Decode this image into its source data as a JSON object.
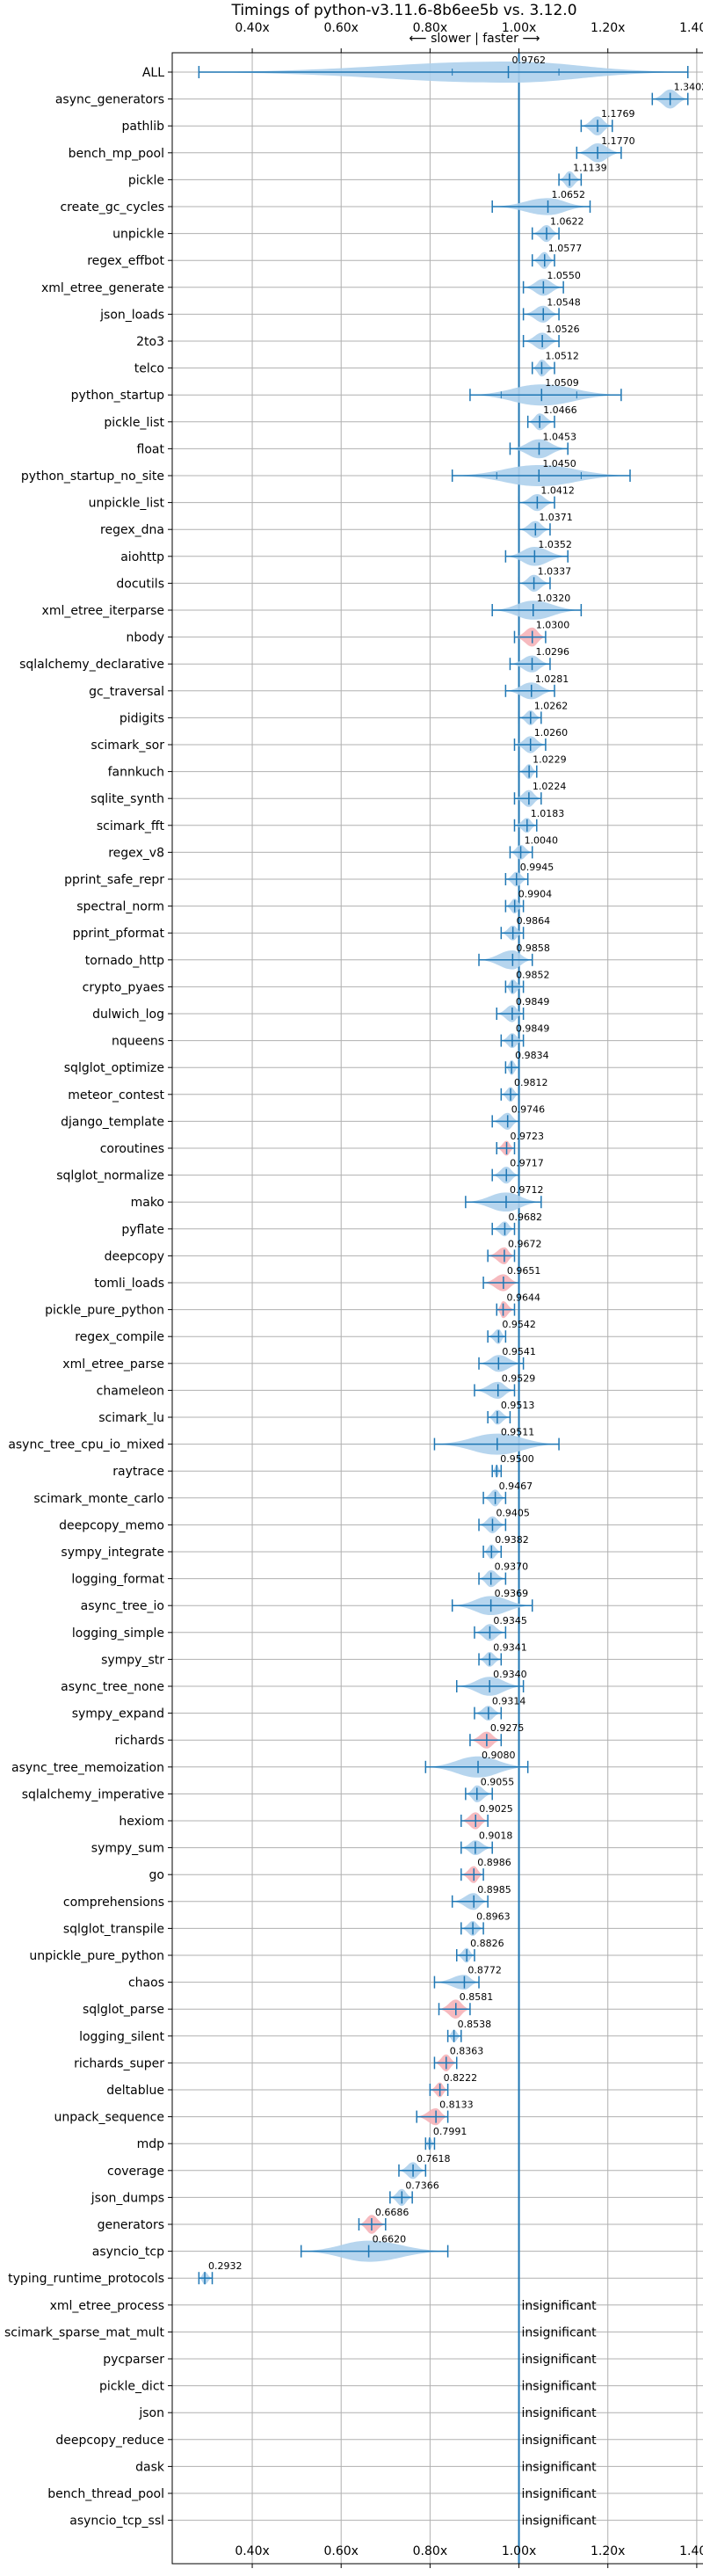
{
  "chart_data": {
    "type": "violin",
    "title": "Timings of python-v3.11.6-8b6ee5b vs. 3.12.0",
    "subtitle": "⟵ slower | faster ⟶",
    "x_ticks": [
      "0.40x",
      "0.60x",
      "0.80x",
      "1.00x",
      "1.20x",
      "1.40x"
    ],
    "xlim": [
      0.22,
      1.42
    ],
    "reference_x": 1.0,
    "insignificant_label": "insignificant",
    "colors": {
      "violin": "#aed0ec",
      "highlight": "#f5b3b8",
      "whisker": "#1f77b4",
      "grid": "#b0b0b0"
    },
    "benchmarks": [
      {
        "name": "ALL",
        "mean": 0.9762,
        "label": "0.9762",
        "lo": 0.28,
        "hi": 1.38,
        "w": 1.0,
        "p5": 0.85,
        "p95": 1.09,
        "hl": false,
        "sig": true
      },
      {
        "name": "async_generators",
        "mean": 1.3402,
        "label": "1.3402",
        "lo": 1.3,
        "hi": 1.38,
        "w": 0.9,
        "hl": false,
        "sig": true
      },
      {
        "name": "pathlib",
        "mean": 1.1769,
        "label": "1.1769",
        "lo": 1.14,
        "hi": 1.21,
        "w": 0.9,
        "hl": false,
        "sig": true
      },
      {
        "name": "bench_mp_pool",
        "mean": 1.177,
        "label": "1.1770",
        "lo": 1.13,
        "hi": 1.23,
        "w": 0.9,
        "hl": false,
        "sig": true
      },
      {
        "name": "pickle",
        "mean": 1.1139,
        "label": "1.1139",
        "lo": 1.09,
        "hi": 1.14,
        "w": 0.8,
        "hl": false,
        "sig": true
      },
      {
        "name": "create_gc_cycles",
        "mean": 1.0652,
        "label": "1.0652",
        "lo": 0.94,
        "hi": 1.16,
        "w": 0.8,
        "hl": false,
        "sig": true
      },
      {
        "name": "unpickle",
        "mean": 1.0622,
        "label": "1.0622",
        "lo": 1.03,
        "hi": 1.09,
        "w": 0.8,
        "hl": false,
        "sig": true
      },
      {
        "name": "regex_effbot",
        "mean": 1.0577,
        "label": "1.0577",
        "lo": 1.03,
        "hi": 1.08,
        "w": 0.8,
        "hl": false,
        "sig": true
      },
      {
        "name": "xml_etree_generate",
        "mean": 1.055,
        "label": "1.0550",
        "lo": 1.01,
        "hi": 1.1,
        "w": 0.8,
        "hl": false,
        "sig": true
      },
      {
        "name": "json_loads",
        "mean": 1.0548,
        "label": "1.0548",
        "lo": 1.01,
        "hi": 1.09,
        "w": 0.8,
        "hl": false,
        "sig": true
      },
      {
        "name": "2to3",
        "mean": 1.0526,
        "label": "1.0526",
        "lo": 1.01,
        "hi": 1.09,
        "w": 0.8,
        "hl": false,
        "sig": true
      },
      {
        "name": "telco",
        "mean": 1.0512,
        "label": "1.0512",
        "lo": 1.03,
        "hi": 1.08,
        "w": 0.8,
        "hl": false,
        "sig": true
      },
      {
        "name": "python_startup",
        "mean": 1.0509,
        "label": "1.0509",
        "lo": 0.89,
        "hi": 1.23,
        "w": 1.0,
        "p5": 0.96,
        "p95": 1.13,
        "hl": false,
        "sig": true
      },
      {
        "name": "pickle_list",
        "mean": 1.0466,
        "label": "1.0466",
        "lo": 1.02,
        "hi": 1.08,
        "w": 0.8,
        "hl": false,
        "sig": true
      },
      {
        "name": "float",
        "mean": 1.0453,
        "label": "1.0453",
        "lo": 0.98,
        "hi": 1.11,
        "w": 0.9,
        "hl": false,
        "sig": true
      },
      {
        "name": "python_startup_no_site",
        "mean": 1.045,
        "label": "1.0450",
        "lo": 0.85,
        "hi": 1.25,
        "w": 1.0,
        "p5": 0.95,
        "p95": 1.14,
        "hl": false,
        "sig": true
      },
      {
        "name": "unpickle_list",
        "mean": 1.0412,
        "label": "1.0412",
        "lo": 1.0,
        "hi": 1.08,
        "w": 0.8,
        "hl": false,
        "sig": true
      },
      {
        "name": "regex_dna",
        "mean": 1.0371,
        "label": "1.0371",
        "lo": 1.0,
        "hi": 1.07,
        "w": 0.8,
        "hl": false,
        "sig": true
      },
      {
        "name": "aiohttp",
        "mean": 1.0352,
        "label": "1.0352",
        "lo": 0.97,
        "hi": 1.11,
        "w": 0.9,
        "hl": false,
        "sig": true
      },
      {
        "name": "docutils",
        "mean": 1.0337,
        "label": "1.0337",
        "lo": 1.0,
        "hi": 1.07,
        "w": 0.8,
        "hl": false,
        "sig": true
      },
      {
        "name": "xml_etree_iterparse",
        "mean": 1.032,
        "label": "1.0320",
        "lo": 0.94,
        "hi": 1.14,
        "w": 0.9,
        "hl": false,
        "sig": true
      },
      {
        "name": "nbody",
        "mean": 1.03,
        "label": "1.0300",
        "lo": 0.99,
        "hi": 1.06,
        "w": 0.9,
        "hl": true,
        "sig": true
      },
      {
        "name": "sqlalchemy_declarative",
        "mean": 1.0296,
        "label": "1.0296",
        "lo": 0.98,
        "hi": 1.07,
        "w": 0.8,
        "hl": false,
        "sig": true
      },
      {
        "name": "gc_traversal",
        "mean": 1.0281,
        "label": "1.0281",
        "lo": 0.97,
        "hi": 1.08,
        "w": 0.8,
        "hl": false,
        "sig": true
      },
      {
        "name": "pidigits",
        "mean": 1.0262,
        "label": "1.0262",
        "lo": 1.0,
        "hi": 1.05,
        "w": 0.7,
        "hl": false,
        "sig": true
      },
      {
        "name": "scimark_sor",
        "mean": 1.026,
        "label": "1.0260",
        "lo": 0.99,
        "hi": 1.06,
        "w": 0.8,
        "hl": false,
        "sig": true
      },
      {
        "name": "fannkuch",
        "mean": 1.0229,
        "label": "1.0229",
        "lo": 1.0,
        "hi": 1.04,
        "w": 0.7,
        "hl": false,
        "sig": true
      },
      {
        "name": "sqlite_synth",
        "mean": 1.0224,
        "label": "1.0224",
        "lo": 0.99,
        "hi": 1.05,
        "w": 0.8,
        "hl": false,
        "sig": true
      },
      {
        "name": "scimark_fft",
        "mean": 1.0183,
        "label": "1.0183",
        "lo": 0.99,
        "hi": 1.04,
        "w": 0.7,
        "hl": false,
        "sig": true
      },
      {
        "name": "regex_v8",
        "mean": 1.004,
        "label": "1.0040",
        "lo": 0.98,
        "hi": 1.03,
        "w": 0.7,
        "hl": false,
        "sig": true
      },
      {
        "name": "pprint_safe_repr",
        "mean": 0.9945,
        "label": "0.9945",
        "lo": 0.97,
        "hi": 1.02,
        "w": 0.7,
        "hl": false,
        "sig": true
      },
      {
        "name": "spectral_norm",
        "mean": 0.9904,
        "label": "0.9904",
        "lo": 0.97,
        "hi": 1.01,
        "w": 0.7,
        "hl": false,
        "sig": true
      },
      {
        "name": "pprint_pformat",
        "mean": 0.9864,
        "label": "0.9864",
        "lo": 0.96,
        "hi": 1.01,
        "w": 0.7,
        "hl": false,
        "sig": true
      },
      {
        "name": "tornado_http",
        "mean": 0.9858,
        "label": "0.9858",
        "lo": 0.91,
        "hi": 1.03,
        "w": 0.9,
        "hl": false,
        "sig": true
      },
      {
        "name": "crypto_pyaes",
        "mean": 0.9852,
        "label": "0.9852",
        "lo": 0.97,
        "hi": 1.01,
        "w": 0.7,
        "hl": false,
        "sig": true
      },
      {
        "name": "dulwich_log",
        "mean": 0.9849,
        "label": "0.9849",
        "lo": 0.95,
        "hi": 1.01,
        "w": 0.8,
        "hl": false,
        "sig": true
      },
      {
        "name": "nqueens",
        "mean": 0.9849,
        "label": "0.9849",
        "lo": 0.96,
        "hi": 1.01,
        "w": 0.7,
        "hl": false,
        "sig": true
      },
      {
        "name": "sqlglot_optimize",
        "mean": 0.9834,
        "label": "0.9834",
        "lo": 0.97,
        "hi": 1.0,
        "w": 0.7,
        "hl": false,
        "sig": true
      },
      {
        "name": "meteor_contest",
        "mean": 0.9812,
        "label": "0.9812",
        "lo": 0.96,
        "hi": 1.0,
        "w": 0.7,
        "hl": false,
        "sig": true
      },
      {
        "name": "django_template",
        "mean": 0.9746,
        "label": "0.9746",
        "lo": 0.94,
        "hi": 1.0,
        "w": 0.8,
        "hl": false,
        "sig": true
      },
      {
        "name": "coroutines",
        "mean": 0.9723,
        "label": "0.9723",
        "lo": 0.95,
        "hi": 0.99,
        "w": 0.7,
        "hl": true,
        "sig": true
      },
      {
        "name": "sqlglot_normalize",
        "mean": 0.9717,
        "label": "0.9717",
        "lo": 0.94,
        "hi": 1.0,
        "w": 0.8,
        "hl": false,
        "sig": true
      },
      {
        "name": "mako",
        "mean": 0.9712,
        "label": "0.9712",
        "lo": 0.88,
        "hi": 1.05,
        "w": 0.9,
        "hl": false,
        "sig": true
      },
      {
        "name": "pyflate",
        "mean": 0.9682,
        "label": "0.9682",
        "lo": 0.94,
        "hi": 0.99,
        "w": 0.7,
        "hl": false,
        "sig": true
      },
      {
        "name": "deepcopy",
        "mean": 0.9672,
        "label": "0.9672",
        "lo": 0.93,
        "hi": 0.99,
        "w": 0.8,
        "hl": true,
        "sig": true
      },
      {
        "name": "tomli_loads",
        "mean": 0.9651,
        "label": "0.9651",
        "lo": 0.92,
        "hi": 1.0,
        "w": 0.8,
        "hl": true,
        "sig": true
      },
      {
        "name": "pickle_pure_python",
        "mean": 0.9644,
        "label": "0.9644",
        "lo": 0.95,
        "hi": 0.99,
        "w": 0.8,
        "hl": true,
        "sig": true
      },
      {
        "name": "regex_compile",
        "mean": 0.9542,
        "label": "0.9542",
        "lo": 0.93,
        "hi": 0.97,
        "w": 0.7,
        "hl": false,
        "sig": true
      },
      {
        "name": "xml_etree_parse",
        "mean": 0.9541,
        "label": "0.9541",
        "lo": 0.91,
        "hi": 1.01,
        "w": 0.8,
        "hl": false,
        "sig": true
      },
      {
        "name": "chameleon",
        "mean": 0.9529,
        "label": "0.9529",
        "lo": 0.9,
        "hi": 0.99,
        "w": 0.8,
        "hl": false,
        "sig": true
      },
      {
        "name": "scimark_lu",
        "mean": 0.9513,
        "label": "0.9513",
        "lo": 0.93,
        "hi": 0.98,
        "w": 0.7,
        "hl": false,
        "sig": true
      },
      {
        "name": "async_tree_cpu_io_mixed",
        "mean": 0.9511,
        "label": "0.9511",
        "lo": 0.81,
        "hi": 1.09,
        "w": 1.0,
        "hl": false,
        "sig": true
      },
      {
        "name": "raytrace",
        "mean": 0.95,
        "label": "0.9500",
        "lo": 0.94,
        "hi": 0.96,
        "w": 0.6,
        "hl": false,
        "sig": true
      },
      {
        "name": "scimark_monte_carlo",
        "mean": 0.9467,
        "label": "0.9467",
        "lo": 0.92,
        "hi": 0.97,
        "w": 0.8,
        "hl": false,
        "sig": true
      },
      {
        "name": "deepcopy_memo",
        "mean": 0.9405,
        "label": "0.9405",
        "lo": 0.91,
        "hi": 0.97,
        "w": 0.8,
        "hl": false,
        "sig": true
      },
      {
        "name": "sympy_integrate",
        "mean": 0.9382,
        "label": "0.9382",
        "lo": 0.92,
        "hi": 0.96,
        "w": 0.7,
        "hl": false,
        "sig": true
      },
      {
        "name": "logging_format",
        "mean": 0.937,
        "label": "0.9370",
        "lo": 0.91,
        "hi": 0.97,
        "w": 0.8,
        "hl": false,
        "sig": true
      },
      {
        "name": "async_tree_io",
        "mean": 0.9369,
        "label": "0.9369",
        "lo": 0.85,
        "hi": 1.03,
        "w": 0.9,
        "hl": false,
        "sig": true
      },
      {
        "name": "logging_simple",
        "mean": 0.9345,
        "label": "0.9345",
        "lo": 0.9,
        "hi": 0.97,
        "w": 0.8,
        "hl": false,
        "sig": true
      },
      {
        "name": "sympy_str",
        "mean": 0.9341,
        "label": "0.9341",
        "lo": 0.91,
        "hi": 0.96,
        "w": 0.7,
        "hl": false,
        "sig": true
      },
      {
        "name": "async_tree_none",
        "mean": 0.934,
        "label": "0.9340",
        "lo": 0.86,
        "hi": 1.01,
        "w": 0.9,
        "hl": false,
        "sig": true
      },
      {
        "name": "sympy_expand",
        "mean": 0.9314,
        "label": "0.9314",
        "lo": 0.9,
        "hi": 0.96,
        "w": 0.7,
        "hl": false,
        "sig": true
      },
      {
        "name": "richards",
        "mean": 0.9275,
        "label": "0.9275",
        "lo": 0.89,
        "hi": 0.96,
        "w": 0.8,
        "hl": true,
        "sig": true
      },
      {
        "name": "async_tree_memoization",
        "mean": 0.908,
        "label": "0.9080",
        "lo": 0.79,
        "hi": 1.02,
        "w": 1.0,
        "hl": false,
        "sig": true
      },
      {
        "name": "sqlalchemy_imperative",
        "mean": 0.9055,
        "label": "0.9055",
        "lo": 0.88,
        "hi": 0.94,
        "w": 0.8,
        "hl": false,
        "sig": true
      },
      {
        "name": "hexiom",
        "mean": 0.9025,
        "label": "0.9025",
        "lo": 0.87,
        "hi": 0.93,
        "w": 0.8,
        "hl": true,
        "sig": true
      },
      {
        "name": "sympy_sum",
        "mean": 0.9018,
        "label": "0.9018",
        "lo": 0.87,
        "hi": 0.94,
        "w": 0.7,
        "hl": false,
        "sig": true
      },
      {
        "name": "go",
        "mean": 0.8986,
        "label": "0.8986",
        "lo": 0.87,
        "hi": 0.92,
        "w": 0.8,
        "hl": true,
        "sig": true
      },
      {
        "name": "comprehensions",
        "mean": 0.8985,
        "label": "0.8985",
        "lo": 0.85,
        "hi": 0.93,
        "w": 0.8,
        "hl": false,
        "sig": true
      },
      {
        "name": "sqlglot_transpile",
        "mean": 0.8963,
        "label": "0.8963",
        "lo": 0.87,
        "hi": 0.92,
        "w": 0.7,
        "hl": false,
        "sig": true
      },
      {
        "name": "unpickle_pure_python",
        "mean": 0.8826,
        "label": "0.8826",
        "lo": 0.86,
        "hi": 0.9,
        "w": 0.7,
        "hl": false,
        "sig": true
      },
      {
        "name": "chaos",
        "mean": 0.8772,
        "label": "0.8772",
        "lo": 0.81,
        "hi": 0.91,
        "w": 0.7,
        "hl": false,
        "sig": true
      },
      {
        "name": "sqlglot_parse",
        "mean": 0.8581,
        "label": "0.8581",
        "lo": 0.82,
        "hi": 0.89,
        "w": 0.9,
        "hl": true,
        "sig": true
      },
      {
        "name": "logging_silent",
        "mean": 0.8538,
        "label": "0.8538",
        "lo": 0.84,
        "hi": 0.87,
        "w": 0.6,
        "hl": false,
        "sig": true
      },
      {
        "name": "richards_super",
        "mean": 0.8363,
        "label": "0.8363",
        "lo": 0.81,
        "hi": 0.86,
        "w": 0.8,
        "hl": true,
        "sig": true
      },
      {
        "name": "deltablue",
        "mean": 0.8222,
        "label": "0.8222",
        "lo": 0.8,
        "hi": 0.84,
        "w": 0.7,
        "hl": true,
        "sig": true
      },
      {
        "name": "unpack_sequence",
        "mean": 0.8133,
        "label": "0.8133",
        "lo": 0.77,
        "hi": 0.84,
        "w": 0.8,
        "hl": true,
        "sig": true
      },
      {
        "name": "mdp",
        "mean": 0.7991,
        "label": "0.7991",
        "lo": 0.79,
        "hi": 0.81,
        "w": 0.6,
        "hl": false,
        "sig": true
      },
      {
        "name": "coverage",
        "mean": 0.7618,
        "label": "0.7618",
        "lo": 0.73,
        "hi": 0.79,
        "w": 0.8,
        "hl": false,
        "sig": true
      },
      {
        "name": "json_dumps",
        "mean": 0.7366,
        "label": "0.7366",
        "lo": 0.71,
        "hi": 0.76,
        "w": 0.8,
        "hl": false,
        "sig": true
      },
      {
        "name": "generators",
        "mean": 0.6686,
        "label": "0.6686",
        "lo": 0.64,
        "hi": 0.7,
        "w": 0.9,
        "hl": true,
        "sig": true
      },
      {
        "name": "asyncio_tcp",
        "mean": 0.662,
        "label": "0.6620",
        "lo": 0.51,
        "hi": 0.84,
        "w": 1.0,
        "hl": false,
        "sig": true
      },
      {
        "name": "typing_runtime_protocols",
        "mean": 0.2932,
        "label": "0.2932",
        "lo": 0.28,
        "hi": 0.31,
        "w": 0.6,
        "hl": false,
        "sig": true
      },
      {
        "name": "xml_etree_process",
        "sig": false
      },
      {
        "name": "scimark_sparse_mat_mult",
        "sig": false
      },
      {
        "name": "pycparser",
        "sig": false
      },
      {
        "name": "pickle_dict",
        "sig": false
      },
      {
        "name": "json",
        "sig": false
      },
      {
        "name": "deepcopy_reduce",
        "sig": false
      },
      {
        "name": "dask",
        "sig": false
      },
      {
        "name": "bench_thread_pool",
        "sig": false
      },
      {
        "name": "asyncio_tcp_ssl",
        "sig": false
      }
    ]
  }
}
